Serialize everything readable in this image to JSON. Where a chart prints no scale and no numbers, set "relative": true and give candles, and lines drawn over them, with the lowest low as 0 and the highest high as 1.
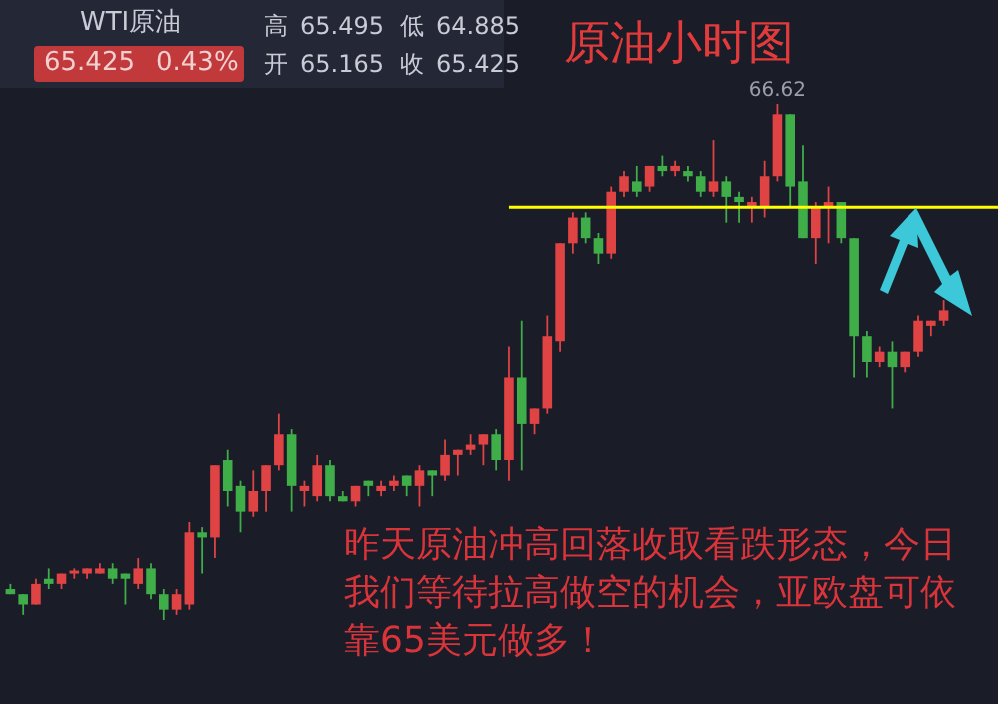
{
  "chart_data": {
    "type": "candlestick",
    "title": "原油小时图",
    "relative": true,
    "categories": [
      null,
      null,
      null,
      null,
      null,
      null,
      null,
      null,
      null,
      null,
      null,
      null,
      null,
      null,
      null,
      null,
      null,
      null,
      null,
      null,
      null,
      null,
      null,
      null,
      null,
      null,
      null,
      null,
      null,
      null,
      null,
      null,
      null,
      null,
      null,
      null,
      null,
      null,
      null,
      null,
      null,
      null,
      null,
      null,
      null,
      null,
      null,
      null,
      null,
      null,
      null,
      null,
      null,
      null,
      null,
      null,
      null,
      null,
      null,
      null,
      null,
      null,
      null,
      null,
      null,
      null,
      null,
      null,
      null,
      null,
      null,
      null,
      null,
      null
    ],
    "ohlc": [
      [
        0.06,
        0.07,
        0.05,
        0.05
      ],
      [
        0.05,
        0.05,
        0.01,
        0.03
      ],
      [
        0.03,
        0.08,
        0.03,
        0.07
      ],
      [
        0.08,
        0.1,
        0.06,
        0.07
      ],
      [
        0.07,
        0.09,
        0.06,
        0.09
      ],
      [
        0.09,
        0.1,
        0.08,
        0.09
      ],
      [
        0.09,
        0.1,
        0.08,
        0.1
      ],
      [
        0.09,
        0.11,
        0.09,
        0.1
      ],
      [
        0.1,
        0.11,
        0.07,
        0.08
      ],
      [
        0.09,
        0.09,
        0.03,
        0.08
      ],
      [
        0.07,
        0.12,
        0.06,
        0.1
      ],
      [
        0.1,
        0.11,
        0.04,
        0.05
      ],
      [
        0.05,
        0.06,
        0,
        0.02
      ],
      [
        0.02,
        0.06,
        0.01,
        0.05
      ],
      [
        0.03,
        0.19,
        0.02,
        0.17
      ],
      [
        0.17,
        0.18,
        0.09,
        0.16
      ],
      [
        0.16,
        0.3,
        0.12,
        0.3
      ],
      [
        0.31,
        0.33,
        0.22,
        0.25
      ],
      [
        0.26,
        0.27,
        0.17,
        0.21
      ],
      [
        0.21,
        0.29,
        0.2,
        0.25
      ],
      [
        0.25,
        0.3,
        0.21,
        0.3
      ],
      [
        0.3,
        0.4,
        0.29,
        0.36
      ],
      [
        0.36,
        0.37,
        0.21,
        0.26
      ],
      [
        0.25,
        0.27,
        0.22,
        0.26
      ],
      [
        0.24,
        0.32,
        0.23,
        0.3
      ],
      [
        0.3,
        0.31,
        0.23,
        0.24
      ],
      [
        0.24,
        0.25,
        0.23,
        0.23
      ],
      [
        0.23,
        0.26,
        0.22,
        0.26
      ],
      [
        0.27,
        0.27,
        0.24,
        0.26
      ],
      [
        0.25,
        0.27,
        0.24,
        0.26
      ],
      [
        0.26,
        0.28,
        0.25,
        0.27
      ],
      [
        0.28,
        0.28,
        0.24,
        0.26
      ],
      [
        0.26,
        0.3,
        0.22,
        0.29
      ],
      [
        0.29,
        0.29,
        0.24,
        0.28
      ],
      [
        0.28,
        0.35,
        0.27,
        0.32
      ],
      [
        0.32,
        0.33,
        0.28,
        0.33
      ],
      [
        0.33,
        0.36,
        0.32,
        0.34
      ],
      [
        0.34,
        0.36,
        0.3,
        0.36
      ],
      [
        0.36,
        0.37,
        0.29,
        0.31
      ],
      [
        0.31,
        0.53,
        0.27,
        0.47
      ],
      [
        0.47,
        0.58,
        0.29,
        0.38
      ],
      [
        0.38,
        0.41,
        0.36,
        0.41
      ],
      [
        0.41,
        0.59,
        0.4,
        0.55
      ],
      [
        0.54,
        0.73,
        0.52,
        0.73
      ],
      [
        0.73,
        0.79,
        0.71,
        0.78
      ],
      [
        0.78,
        0.79,
        0.73,
        0.74
      ],
      [
        0.74,
        0.75,
        0.69,
        0.71
      ],
      [
        0.71,
        0.84,
        0.7,
        0.83
      ],
      [
        0.83,
        0.87,
        0.82,
        0.86
      ],
      [
        0.85,
        0.88,
        0.82,
        0.83
      ],
      [
        0.84,
        0.88,
        0.83,
        0.88
      ],
      [
        0.88,
        0.9,
        0.86,
        0.87
      ],
      [
        0.87,
        0.89,
        0.86,
        0.88
      ],
      [
        0.87,
        0.88,
        0.85,
        0.86
      ],
      [
        0.86,
        0.87,
        0.82,
        0.83
      ],
      [
        0.83,
        0.93,
        0.82,
        0.85
      ],
      [
        0.85,
        0.86,
        0.77,
        0.82
      ],
      [
        0.82,
        0.83,
        0.77,
        0.81
      ],
      [
        0.8,
        0.82,
        0.77,
        0.81
      ],
      [
        0.8,
        0.89,
        0.78,
        0.86
      ],
      [
        0.86,
        1,
        0.85,
        0.98
      ],
      [
        0.98,
        0.98,
        0.8,
        0.84
      ],
      [
        0.85,
        0.92,
        0.74,
        0.74
      ],
      [
        0.74,
        0.81,
        0.69,
        0.8
      ],
      [
        0.8,
        0.84,
        0.73,
        0.81
      ],
      [
        0.81,
        0.81,
        0.73,
        0.74
      ],
      [
        0.74,
        0.74,
        0.47,
        0.55
      ],
      [
        0.55,
        0.56,
        0.47,
        0.5
      ],
      [
        0.5,
        0.53,
        0.49,
        0.52
      ],
      [
        0.52,
        0.54,
        0.41,
        0.49
      ],
      [
        0.49,
        0.52,
        0.48,
        0.52
      ],
      [
        0.52,
        0.59,
        0.51,
        0.58
      ],
      [
        0.57,
        0.58,
        0.55,
        0.58
      ],
      [
        0.58,
        0.62,
        0.57,
        0.6
      ]
    ],
    "colors": [
      "#3fae49",
      "#3fae49",
      "#e04344",
      "#3fae49",
      "#e04344",
      "#e04344",
      "#e04344",
      "#e04344",
      "#3fae49",
      "#3fae49",
      "#e04344",
      "#3fae49",
      "#3fae49",
      "#e04344",
      "#e04344",
      "#3fae49",
      "#e04344",
      "#3fae49",
      "#3fae49",
      "#e04344",
      "#e04344",
      "#e04344",
      "#3fae49",
      "#e04344",
      "#e04344",
      "#3fae49",
      "#3fae49",
      "#e04344",
      "#3fae49",
      "#e04344",
      "#e04344",
      "#3fae49",
      "#e04344",
      "#3fae49",
      "#e04344",
      "#e04344",
      "#e04344",
      "#e04344",
      "#3fae49",
      "#e04344",
      "#3fae49",
      "#e04344",
      "#e04344",
      "#e04344",
      "#e04344",
      "#3fae49",
      "#3fae49",
      "#e04344",
      "#e04344",
      "#3fae49",
      "#e04344",
      "#3fae49",
      "#e04344",
      "#3fae49",
      "#3fae49",
      "#e04344",
      "#3fae49",
      "#3fae49",
      "#e04344",
      "#e04344",
      "#e04344",
      "#3fae49",
      "#3fae49",
      "#e04344",
      "#e04344",
      "#3fae49",
      "#3fae49",
      "#3fae49",
      "#e04344",
      "#3fae49",
      "#e04344",
      "#e04344",
      "#e04344",
      "#e04344"
    ],
    "ref_lines": [
      {
        "axis": "y",
        "value": 0.8,
        "color": "#ffff00"
      }
    ],
    "annotations": [
      "WTI原油",
      "65.425",
      "0.43%",
      "高",
      "65.495",
      "低",
      "64.885",
      "开",
      "65.165",
      "收",
      "65.425",
      "66.62",
      "昨天原油冲高回落收取看跌形态，今日我们等待拉高做空的机会，亚欧盘可依靠65美元做多！"
    ]
  }
}
